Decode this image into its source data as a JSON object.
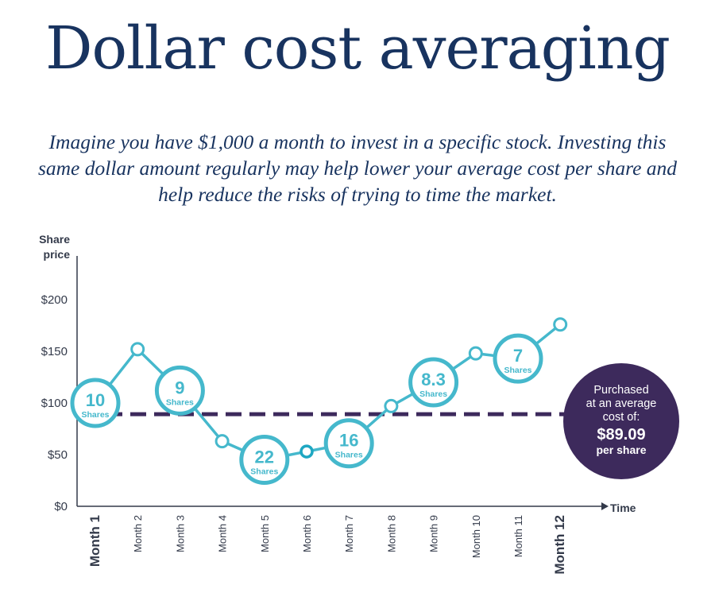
{
  "title": "Dollar cost averaging",
  "subtitle": "Imagine you have $1,000 a month to invest in a specific stock. Investing this same dollar amount regularly may help lower your average cost per share and help reduce the risks of trying to time the market.",
  "colors": {
    "title": "#18335f",
    "line": "#45b8cc",
    "average_line": "#3d2a5c",
    "callout": "#3d2a5c",
    "axis": "#333a4a"
  },
  "chart_data": {
    "type": "line",
    "y_axis_title_line1": "Share",
    "y_axis_title_line2": "price",
    "x_axis_title": "Time",
    "yticks": [
      "$0",
      "$50",
      "$100",
      "$150",
      "$200"
    ],
    "ylim": [
      0,
      240
    ],
    "categories": [
      "Month 1",
      "Month 2",
      "Month 3",
      "Month 4",
      "Month 5",
      "Month 6",
      "Month 7",
      "Month 8",
      "Month 9",
      "Month 10",
      "Month 11",
      "Month 12"
    ],
    "bold_categories": [
      "Month 1",
      "Month 12"
    ],
    "values": [
      100,
      152,
      112,
      63,
      45,
      53,
      61,
      97,
      120,
      148,
      143,
      176
    ],
    "share_labels": [
      {
        "index": 0,
        "shares": "10",
        "unit": "Shares"
      },
      {
        "index": 2,
        "shares": "9",
        "unit": "Shares"
      },
      {
        "index": 4,
        "shares": "22",
        "unit": "Shares"
      },
      {
        "index": 6,
        "shares": "16",
        "unit": "Shares"
      },
      {
        "index": 8,
        "shares": "8.3",
        "unit": "Shares"
      },
      {
        "index": 10,
        "shares": "7",
        "unit": "Shares"
      }
    ],
    "average_cost": 89.09,
    "callout": {
      "line1": "Purchased",
      "line2": "at an average",
      "line3": "cost of:",
      "value": "$89.09",
      "unit": "per share"
    }
  }
}
